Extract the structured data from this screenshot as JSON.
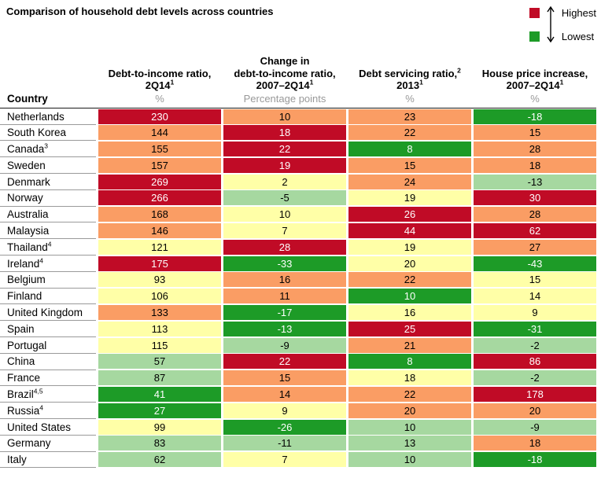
{
  "title": "Comparison of household debt levels across countries",
  "legend": {
    "highest_label": "Highest",
    "lowest_label": "Lowest",
    "highest_color": "#c00b26",
    "lowest_color": "#1d9b27"
  },
  "chart_data": {
    "type": "heatmap",
    "title": "Comparison of household debt levels across countries",
    "country_header": "Country",
    "color_scale_meaning": {
      "red": "Highest",
      "green": "Lowest"
    },
    "columns": [
      {
        "lines": [
          {
            "text": "Debt-to-income ratio,"
          },
          {
            "text": "2Q14",
            "sup": "1"
          }
        ],
        "unit": "%"
      },
      {
        "lines": [
          {
            "text": "Change in"
          },
          {
            "text": "debt-to-income ratio,"
          },
          {
            "text": "2007–2Q14",
            "sup": "1"
          }
        ],
        "unit": "Percentage points"
      },
      {
        "lines": [
          {
            "text": "Debt servicing ratio,",
            "sup": "2"
          },
          {
            "text": "2013",
            "sup": "1"
          }
        ],
        "unit": "%"
      },
      {
        "lines": [
          {
            "text": "House price increase,"
          },
          {
            "text": "2007–2Q14",
            "sup": "1"
          }
        ],
        "unit": "%"
      }
    ],
    "palette": {
      "red": {
        "bg": "#c00b26",
        "text": "#ffffff"
      },
      "orange": {
        "bg": "#fa9d64",
        "text": "#000000"
      },
      "yellow": {
        "bg": "#ffffa7",
        "text": "#000000"
      },
      "lightgreen": {
        "bg": "#a6d8a0",
        "text": "#000000"
      },
      "green": {
        "bg": "#1d9b27",
        "text": "#ffffff"
      }
    },
    "rows": [
      {
        "country": "Netherlands",
        "sup": "",
        "values": [
          230,
          10,
          23,
          -18
        ],
        "colors": [
          "red",
          "orange",
          "orange",
          "green"
        ]
      },
      {
        "country": "South Korea",
        "sup": "",
        "values": [
          144,
          18,
          22,
          15
        ],
        "colors": [
          "orange",
          "red",
          "orange",
          "orange"
        ]
      },
      {
        "country": "Canada",
        "sup": "3",
        "values": [
          155,
          22,
          8,
          28
        ],
        "colors": [
          "orange",
          "red",
          "green",
          "orange"
        ]
      },
      {
        "country": "Sweden",
        "sup": "",
        "values": [
          157,
          19,
          15,
          18
        ],
        "colors": [
          "orange",
          "red",
          "orange",
          "orange"
        ]
      },
      {
        "country": "Denmark",
        "sup": "",
        "values": [
          269,
          2,
          24,
          -13
        ],
        "colors": [
          "red",
          "yellow",
          "orange",
          "lightgreen"
        ]
      },
      {
        "country": "Norway",
        "sup": "",
        "values": [
          266,
          -5,
          19,
          30
        ],
        "colors": [
          "red",
          "lightgreen",
          "yellow",
          "red"
        ]
      },
      {
        "country": "Australia",
        "sup": "",
        "values": [
          168,
          10,
          26,
          28
        ],
        "colors": [
          "orange",
          "yellow",
          "red",
          "orange"
        ]
      },
      {
        "country": "Malaysia",
        "sup": "",
        "values": [
          146,
          7,
          44,
          62
        ],
        "colors": [
          "orange",
          "yellow",
          "red",
          "red"
        ]
      },
      {
        "country": "Thailand",
        "sup": "4",
        "values": [
          121,
          28,
          19,
          27
        ],
        "colors": [
          "yellow",
          "red",
          "yellow",
          "orange"
        ]
      },
      {
        "country": "Ireland",
        "sup": "4",
        "values": [
          175,
          -33,
          20,
          -43
        ],
        "colors": [
          "red",
          "green",
          "yellow",
          "green"
        ]
      },
      {
        "country": "Belgium",
        "sup": "",
        "values": [
          93,
          16,
          22,
          15
        ],
        "colors": [
          "yellow",
          "orange",
          "orange",
          "yellow"
        ]
      },
      {
        "country": "Finland",
        "sup": "",
        "values": [
          106,
          11,
          10,
          14
        ],
        "colors": [
          "yellow",
          "orange",
          "green",
          "yellow"
        ]
      },
      {
        "country": "United Kingdom",
        "sup": "",
        "values": [
          133,
          -17,
          16,
          9
        ],
        "colors": [
          "orange",
          "green",
          "yellow",
          "yellow"
        ]
      },
      {
        "country": "Spain",
        "sup": "",
        "values": [
          113,
          -13,
          25,
          -31
        ],
        "colors": [
          "yellow",
          "green",
          "red",
          "green"
        ]
      },
      {
        "country": "Portugal",
        "sup": "",
        "values": [
          115,
          -9,
          21,
          -2
        ],
        "colors": [
          "yellow",
          "lightgreen",
          "orange",
          "lightgreen"
        ]
      },
      {
        "country": "China",
        "sup": "",
        "values": [
          57,
          22,
          8,
          86
        ],
        "colors": [
          "lightgreen",
          "red",
          "green",
          "red"
        ]
      },
      {
        "country": "France",
        "sup": "",
        "values": [
          87,
          15,
          18,
          -2
        ],
        "colors": [
          "lightgreen",
          "orange",
          "yellow",
          "lightgreen"
        ]
      },
      {
        "country": "Brazil",
        "sup": "4,5",
        "values": [
          41,
          14,
          22,
          178
        ],
        "colors": [
          "green",
          "orange",
          "orange",
          "red"
        ]
      },
      {
        "country": "Russia",
        "sup": "4",
        "values": [
          27,
          9,
          20,
          20
        ],
        "colors": [
          "green",
          "yellow",
          "orange",
          "orange"
        ]
      },
      {
        "country": "United States",
        "sup": "",
        "values": [
          99,
          -26,
          10,
          -9
        ],
        "colors": [
          "yellow",
          "green",
          "lightgreen",
          "lightgreen"
        ]
      },
      {
        "country": "Germany",
        "sup": "",
        "values": [
          83,
          -11,
          13,
          18
        ],
        "colors": [
          "lightgreen",
          "lightgreen",
          "lightgreen",
          "orange"
        ]
      },
      {
        "country": "Italy",
        "sup": "",
        "values": [
          62,
          7,
          10,
          -18
        ],
        "colors": [
          "lightgreen",
          "yellow",
          "lightgreen",
          "green"
        ]
      }
    ]
  }
}
